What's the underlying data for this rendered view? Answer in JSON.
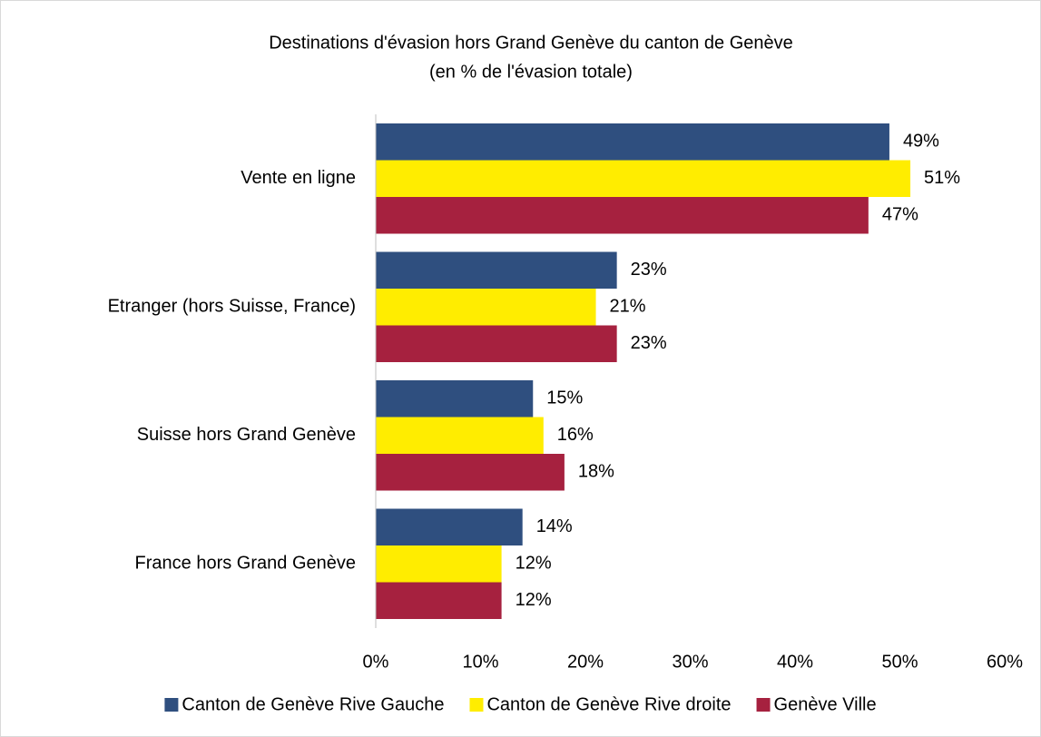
{
  "chart_data": {
    "type": "bar",
    "orientation": "horizontal",
    "title": "Destinations d'évasion hors Grand Genève du canton de Genève",
    "subtitle": "(en % de l'évasion totale)",
    "categories": [
      "Vente en ligne",
      "Etranger (hors Suisse, France)",
      "Suisse hors Grand Genève",
      "France hors Grand Genève"
    ],
    "series": [
      {
        "name": "Canton de Genève Rive Gauche",
        "color": "#2f4f7f",
        "values": [
          49,
          23,
          15,
          14
        ],
        "value_labels": [
          "49%",
          "23%",
          "15%",
          "14%"
        ]
      },
      {
        "name": "Canton de Genève Rive droite",
        "color": "#ffed00",
        "values": [
          51,
          21,
          16,
          12
        ],
        "value_labels": [
          "51%",
          "21%",
          "16%",
          "12%"
        ]
      },
      {
        "name": "Genève Ville",
        "color": "#a6213f",
        "values": [
          47,
          23,
          18,
          12
        ],
        "value_labels": [
          "47%",
          "23%",
          "18%",
          "12%"
        ]
      }
    ],
    "xlim": [
      0,
      60
    ],
    "xticks": [
      {
        "value": 0,
        "label": "0%"
      },
      {
        "value": 10,
        "label": "10%"
      },
      {
        "value": 20,
        "label": "20%"
      },
      {
        "value": 30,
        "label": "30%"
      },
      {
        "value": 40,
        "label": "40%"
      },
      {
        "value": 50,
        "label": "50%"
      },
      {
        "value": 60,
        "label": "60%"
      }
    ],
    "grid": false,
    "legend": "bottom"
  }
}
